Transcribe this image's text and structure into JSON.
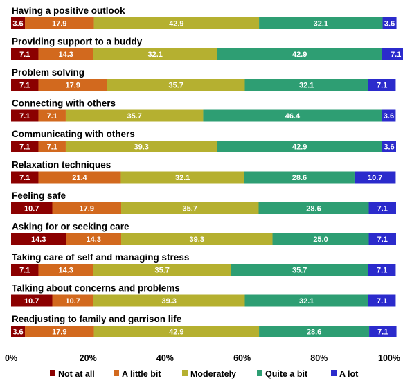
{
  "chart_data": {
    "type": "bar",
    "orientation": "horizontal",
    "stacked": true,
    "categories": [
      "Having a positive outlook",
      "Providing support to a buddy",
      "Problem solving",
      "Connecting with others",
      "Communicating with others",
      "Relaxation techniques",
      "Feeling safe",
      "Asking for or seeking care",
      "Taking care of self and managing stress",
      "Talking about concerns and problems",
      "Readjusting to family and garrison life"
    ],
    "series": [
      {
        "name": "Not at all",
        "color": "#8b0000",
        "values": [
          3.6,
          7.1,
          7.1,
          7.1,
          7.1,
          7.1,
          10.7,
          14.3,
          7.1,
          10.7,
          3.6
        ]
      },
      {
        "name": "A little bit",
        "color": "#d2691e",
        "values": [
          17.9,
          14.3,
          17.9,
          7.1,
          7.1,
          21.4,
          17.9,
          14.3,
          14.3,
          10.7,
          17.9
        ]
      },
      {
        "name": "Moderately",
        "color": "#b5b030",
        "values": [
          42.9,
          32.1,
          35.7,
          35.7,
          39.3,
          32.1,
          35.7,
          39.3,
          35.7,
          39.3,
          42.9
        ]
      },
      {
        "name": "Quite a bit",
        "color": "#2e9e73",
        "values": [
          32.1,
          42.9,
          32.1,
          46.4,
          42.9,
          28.6,
          28.6,
          25.0,
          35.7,
          32.1,
          28.6
        ]
      },
      {
        "name": "A lot",
        "color": "#2b2bcc",
        "values": [
          3.6,
          7.1,
          7.1,
          3.6,
          3.6,
          10.7,
          7.1,
          7.1,
          7.1,
          7.1,
          7.1
        ]
      }
    ],
    "value_labels": [
      [
        "3.6",
        "17.9",
        "42.9",
        "32.1",
        "3.6"
      ],
      [
        "7.1",
        "14.3",
        "32.1",
        "42.9",
        "7.1"
      ],
      [
        "7.1",
        "17.9",
        "35.7",
        "32.1",
        "7.1"
      ],
      [
        "7.1",
        "7.1",
        "35.7",
        "46.4",
        "3.6"
      ],
      [
        "7.1",
        "7.1",
        "39.3",
        "42.9",
        "3.6"
      ],
      [
        "7.1",
        "21.4",
        "32.1",
        "28.6",
        "10.7"
      ],
      [
        "10.7",
        "17.9",
        "35.7",
        "28.6",
        "7.1"
      ],
      [
        "14.3",
        "14.3",
        "39.3",
        "25.0",
        "7.1"
      ],
      [
        "7.1",
        "14.3",
        "35.7",
        "35.7",
        "7.1"
      ],
      [
        "10.7",
        "10.7",
        "39.3",
        "32.1",
        "7.1"
      ],
      [
        "3.6",
        "17.9",
        "42.9",
        "28.6",
        "7.1"
      ]
    ],
    "x_ticks": [
      "0%",
      "20%",
      "40%",
      "60%",
      "80%",
      "100%"
    ],
    "xlim": [
      0,
      100
    ],
    "title": "",
    "xlabel": "",
    "ylabel": "",
    "grid": false,
    "legend_position": "bottom"
  }
}
